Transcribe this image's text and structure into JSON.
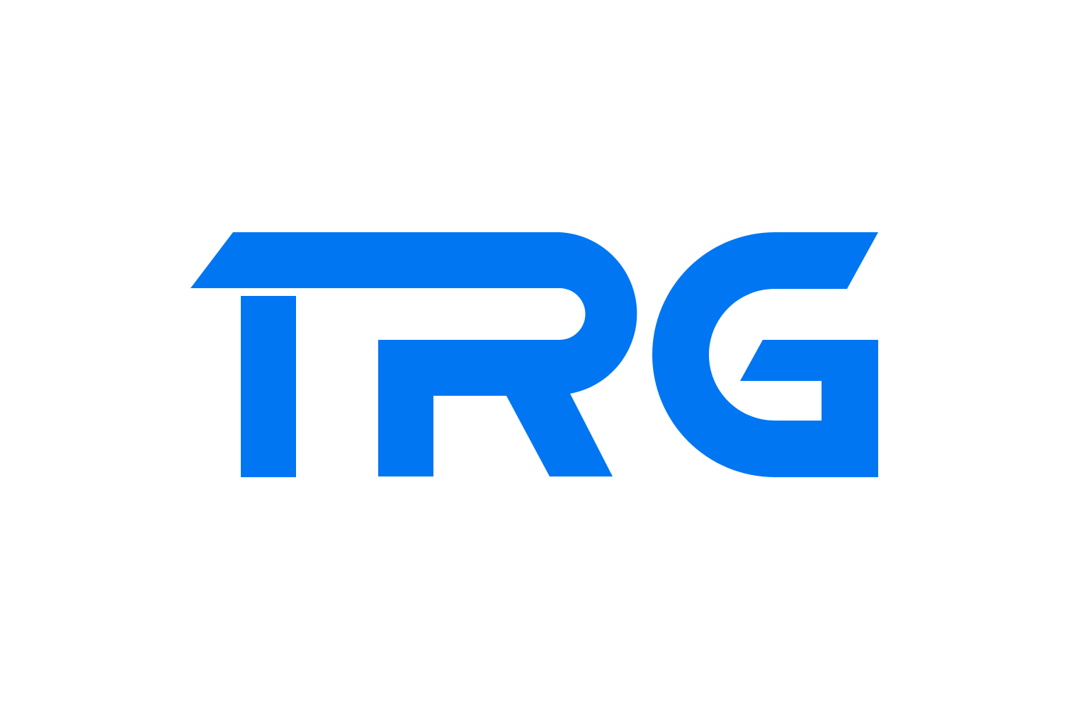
{
  "logo": {
    "wordmark": "TRG",
    "brand_color": "#0176f3",
    "background_color": "#ffffff"
  }
}
